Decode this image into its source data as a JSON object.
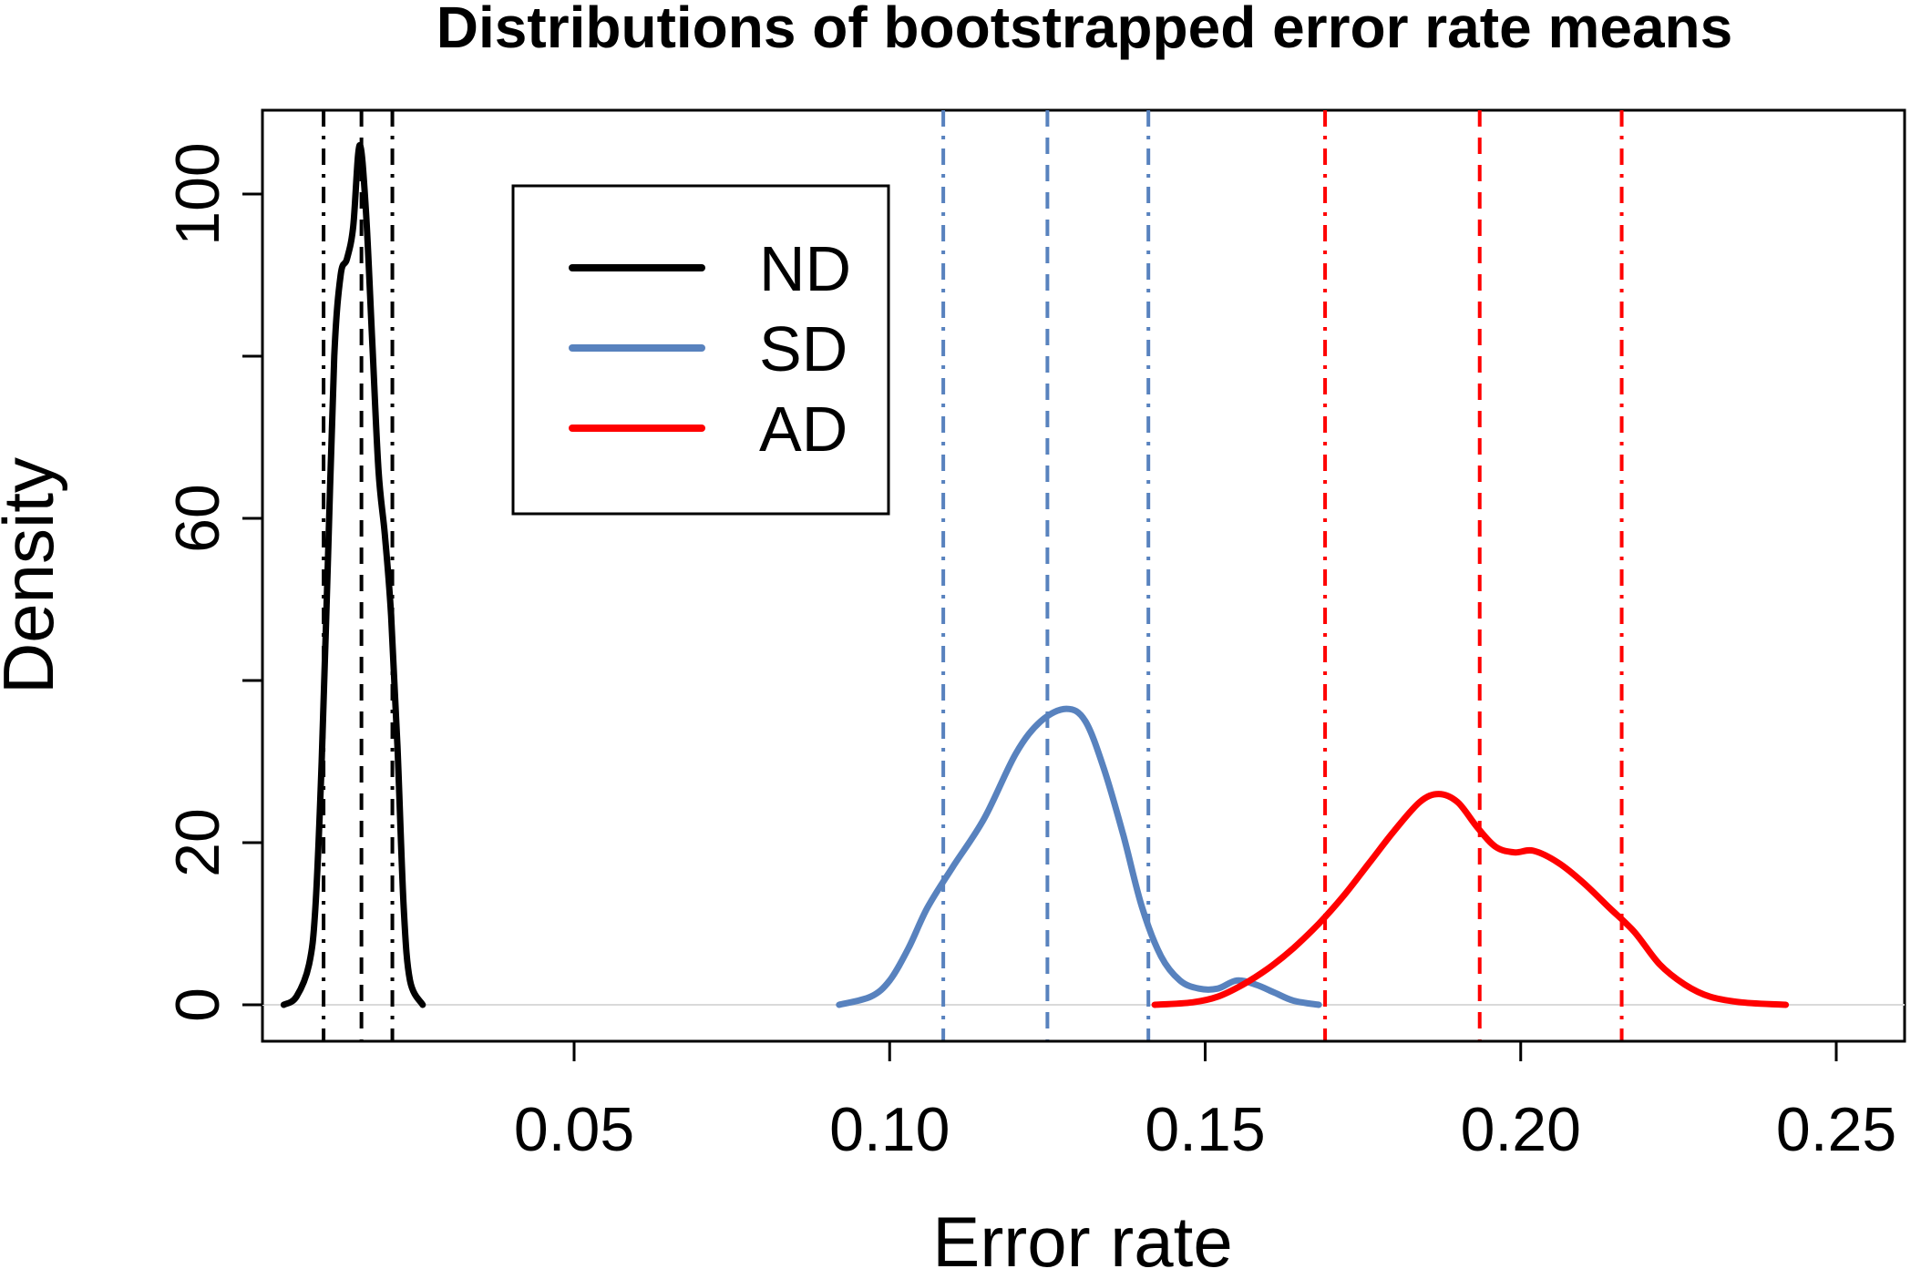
{
  "chart_data": {
    "type": "line",
    "title": "Distributions of bootstrapped error rate means",
    "xlabel": "Error rate",
    "ylabel": "Density",
    "xlim": [
      0.0,
      0.26
    ],
    "ylim": [
      0,
      106
    ],
    "x_ticks": [
      0.05,
      0.1,
      0.15,
      0.2,
      0.25
    ],
    "x_tick_labels": [
      "0.05",
      "0.10",
      "0.15",
      "0.20",
      "0.25"
    ],
    "y_ticks": [
      0,
      20,
      40,
      60,
      80,
      100
    ],
    "y_tick_labels": [
      "0",
      "20",
      "",
      "60",
      "",
      "100"
    ],
    "legend": {
      "position": "top-left"
    },
    "series": [
      {
        "name": "ND",
        "color": "#000000",
        "x": [
          0.004,
          0.006,
          0.008,
          0.009,
          0.01,
          0.011,
          0.012,
          0.013,
          0.014,
          0.015,
          0.016,
          0.017,
          0.018,
          0.019,
          0.02,
          0.021,
          0.022,
          0.023,
          0.024,
          0.026
        ],
        "y": [
          0,
          1,
          5,
          12,
          30,
          55,
          80,
          90,
          92,
          96,
          106,
          98,
          82,
          66,
          58,
          48,
          32,
          12,
          3,
          0
        ],
        "lines": {
          "ci_low": 0.0103,
          "mean": 0.0163,
          "ci_high": 0.0212
        }
      },
      {
        "name": "SD",
        "color": "#5882BE",
        "x": [
          0.092,
          0.097,
          0.1,
          0.103,
          0.106,
          0.11,
          0.115,
          0.12,
          0.124,
          0.128,
          0.131,
          0.134,
          0.137,
          0.14,
          0.143,
          0.146,
          0.149,
          0.152,
          0.155,
          0.158,
          0.161,
          0.164,
          0.168
        ],
        "y": [
          0,
          1,
          3,
          7,
          12,
          17,
          23,
          31,
          35,
          36.5,
          35,
          29,
          21,
          12,
          6,
          3,
          2,
          2,
          3,
          2.5,
          1.5,
          0.5,
          0
        ],
        "lines": {
          "ci_low": 0.1085,
          "mean": 0.125,
          "ci_high": 0.141
        }
      },
      {
        "name": "AD",
        "color": "#FF0000",
        "x": [
          0.142,
          0.148,
          0.152,
          0.156,
          0.16,
          0.164,
          0.168,
          0.172,
          0.176,
          0.18,
          0.184,
          0.187,
          0.19,
          0.193,
          0.196,
          0.199,
          0.202,
          0.206,
          0.21,
          0.214,
          0.218,
          0.222,
          0.226,
          0.23,
          0.235,
          0.242
        ],
        "y": [
          0,
          0.3,
          1,
          2.5,
          4.5,
          7,
          10,
          13.5,
          17.5,
          21.5,
          25,
          26,
          25,
          22,
          19.5,
          18.8,
          19,
          17.5,
          15,
          12,
          9,
          5,
          2.5,
          1,
          0.3,
          0
        ],
        "lines": {
          "ci_low": 0.169,
          "mean": 0.1935,
          "ci_high": 0.216
        }
      }
    ]
  }
}
